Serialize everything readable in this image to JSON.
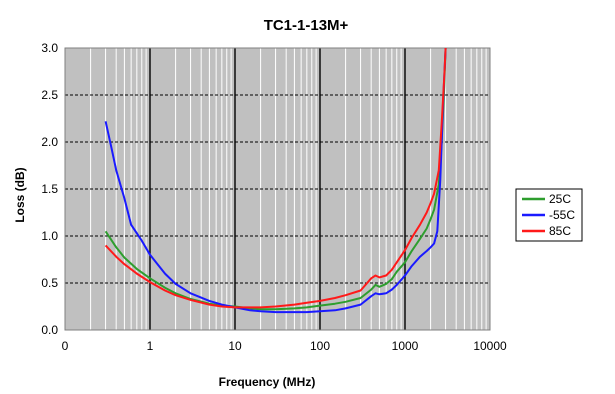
{
  "chart_data": {
    "type": "line",
    "title": "TC1-1-13M+",
    "xlabel": "Frequency (MHz)",
    "ylabel": "Loss (dB)",
    "xscale": "log",
    "xlim": [
      0.1,
      10000
    ],
    "ylim": [
      0,
      3.0
    ],
    "x_tick_labels": [
      "0",
      "1",
      "10",
      "100",
      "1000",
      "10000"
    ],
    "y_tick_labels": [
      "0.0",
      "0.5",
      "1.0",
      "1.5",
      "2.0",
      "2.5",
      "3.0"
    ],
    "grid": true,
    "legend_position": "right",
    "background": "#c0c0c0",
    "series": [
      {
        "name": "25C",
        "color": "#2e9e2e",
        "points": [
          [
            0.3,
            1.05
          ],
          [
            0.4,
            0.88
          ],
          [
            0.5,
            0.77
          ],
          [
            0.7,
            0.65
          ],
          [
            1,
            0.55
          ],
          [
            1.5,
            0.45
          ],
          [
            2,
            0.39
          ],
          [
            3,
            0.33
          ],
          [
            5,
            0.28
          ],
          [
            7,
            0.26
          ],
          [
            10,
            0.25
          ],
          [
            15,
            0.23
          ],
          [
            20,
            0.22
          ],
          [
            30,
            0.22
          ],
          [
            50,
            0.23
          ],
          [
            70,
            0.24
          ],
          [
            100,
            0.26
          ],
          [
            150,
            0.28
          ],
          [
            200,
            0.3
          ],
          [
            300,
            0.34
          ],
          [
            400,
            0.43
          ],
          [
            450,
            0.48
          ],
          [
            500,
            0.46
          ],
          [
            600,
            0.49
          ],
          [
            700,
            0.54
          ],
          [
            800,
            0.62
          ],
          [
            1000,
            0.72
          ],
          [
            1200,
            0.84
          ],
          [
            1500,
            0.97
          ],
          [
            1800,
            1.08
          ],
          [
            2000,
            1.18
          ],
          [
            2200,
            1.28
          ],
          [
            2500,
            1.55
          ],
          [
            2700,
            2.0
          ],
          [
            2900,
            2.6
          ],
          [
            3000,
            3.0
          ]
        ]
      },
      {
        "name": "-55C",
        "color": "#1a1aff",
        "points": [
          [
            0.3,
            2.22
          ],
          [
            0.35,
            1.95
          ],
          [
            0.4,
            1.7
          ],
          [
            0.5,
            1.4
          ],
          [
            0.6,
            1.12
          ],
          [
            0.8,
            0.95
          ],
          [
            1,
            0.8
          ],
          [
            1.5,
            0.6
          ],
          [
            2,
            0.49
          ],
          [
            3,
            0.39
          ],
          [
            5,
            0.31
          ],
          [
            7,
            0.27
          ],
          [
            10,
            0.24
          ],
          [
            15,
            0.21
          ],
          [
            20,
            0.2
          ],
          [
            30,
            0.19
          ],
          [
            50,
            0.19
          ],
          [
            70,
            0.19
          ],
          [
            100,
            0.2
          ],
          [
            150,
            0.21
          ],
          [
            200,
            0.23
          ],
          [
            300,
            0.27
          ],
          [
            400,
            0.36
          ],
          [
            450,
            0.39
          ],
          [
            500,
            0.38
          ],
          [
            600,
            0.39
          ],
          [
            700,
            0.43
          ],
          [
            800,
            0.48
          ],
          [
            1000,
            0.58
          ],
          [
            1200,
            0.68
          ],
          [
            1500,
            0.78
          ],
          [
            1800,
            0.84
          ],
          [
            2000,
            0.88
          ],
          [
            2200,
            0.92
          ],
          [
            2400,
            1.05
          ],
          [
            2600,
            1.6
          ],
          [
            2800,
            2.4
          ],
          [
            3000,
            3.0
          ]
        ]
      },
      {
        "name": "85C",
        "color": "#ff1a1a",
        "points": [
          [
            0.3,
            0.9
          ],
          [
            0.4,
            0.78
          ],
          [
            0.5,
            0.7
          ],
          [
            0.7,
            0.6
          ],
          [
            1,
            0.51
          ],
          [
            1.5,
            0.42
          ],
          [
            2,
            0.37
          ],
          [
            3,
            0.32
          ],
          [
            5,
            0.27
          ],
          [
            7,
            0.25
          ],
          [
            10,
            0.24
          ],
          [
            15,
            0.24
          ],
          [
            20,
            0.24
          ],
          [
            30,
            0.25
          ],
          [
            50,
            0.27
          ],
          [
            70,
            0.29
          ],
          [
            100,
            0.31
          ],
          [
            150,
            0.34
          ],
          [
            200,
            0.37
          ],
          [
            300,
            0.42
          ],
          [
            400,
            0.55
          ],
          [
            450,
            0.58
          ],
          [
            500,
            0.56
          ],
          [
            600,
            0.58
          ],
          [
            700,
            0.64
          ],
          [
            800,
            0.72
          ],
          [
            1000,
            0.85
          ],
          [
            1200,
            0.98
          ],
          [
            1500,
            1.12
          ],
          [
            1800,
            1.25
          ],
          [
            2000,
            1.35
          ],
          [
            2200,
            1.45
          ],
          [
            2500,
            1.7
          ],
          [
            2700,
            2.2
          ],
          [
            2900,
            2.7
          ],
          [
            3000,
            3.0
          ]
        ]
      }
    ]
  }
}
